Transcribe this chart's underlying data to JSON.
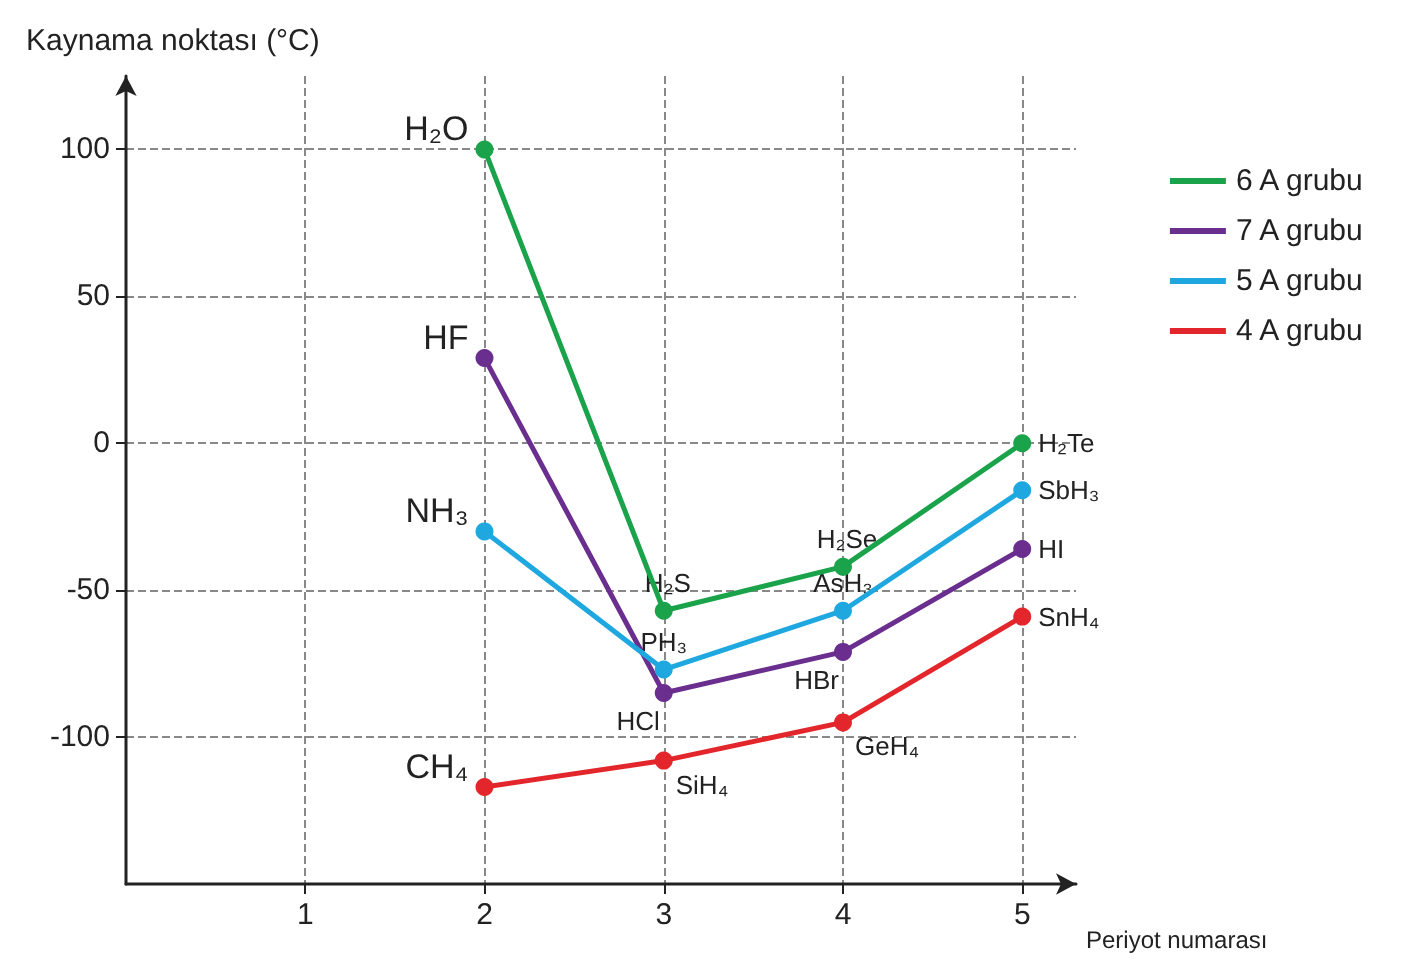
{
  "chart_data": {
    "type": "line",
    "xlabel": "Periyot numarası",
    "ylabel": "Kaynama noktası (°C)",
    "x": [
      2,
      3,
      4,
      5
    ],
    "series": [
      {
        "name": "6 A grubu",
        "color": "#1aa34a",
        "values": [
          100,
          -57,
          -42,
          0
        ]
      },
      {
        "name": "7 A grubu",
        "color": "#6a2e8e",
        "values": [
          29,
          -85,
          -71,
          -36
        ]
      },
      {
        "name": "5 A grubu",
        "color": "#1fa8e0",
        "values": [
          -30,
          -77,
          -57,
          -16
        ]
      },
      {
        "name": "4 A grubu",
        "color": "#e3262b",
        "values": [
          -117,
          -108,
          -95,
          -59
        ]
      }
    ],
    "xlim": [
      0,
      5.3
    ],
    "xticks": [
      1,
      2,
      3,
      4,
      5
    ],
    "ylim": [
      -150,
      125
    ],
    "yticks": [
      -100,
      -50,
      0,
      50,
      100
    ],
    "grid": true,
    "legend": "top right",
    "marker": "circle",
    "line_style": "solid",
    "annotations": [
      {
        "text": "H₂O",
        "x": 2,
        "y": 100
      },
      {
        "text": "HF",
        "x": 2,
        "y": 29
      },
      {
        "text": "NH₃",
        "x": 2,
        "y": -30
      },
      {
        "text": "CH₄",
        "x": 2,
        "y": -117
      },
      {
        "text": "H₂S",
        "x": 3,
        "y": -57
      },
      {
        "text": "PH₃",
        "x": 3,
        "y": -77
      },
      {
        "text": "HCl",
        "x": 3,
        "y": -85
      },
      {
        "text": "SiH₄",
        "x": 3,
        "y": -108
      },
      {
        "text": "H₂Se",
        "x": 4,
        "y": -42
      },
      {
        "text": "AsH₃",
        "x": 4,
        "y": -57
      },
      {
        "text": "HBr",
        "x": 4,
        "y": -71
      },
      {
        "text": "GeH₄",
        "x": 4,
        "y": -95
      },
      {
        "text": "H₂Te",
        "x": 5,
        "y": 0
      },
      {
        "text": "SbH₃",
        "x": 5,
        "y": -16
      },
      {
        "text": "HI",
        "x": 5,
        "y": -36
      },
      {
        "text": "SnH₄",
        "x": 5,
        "y": -59
      }
    ]
  }
}
